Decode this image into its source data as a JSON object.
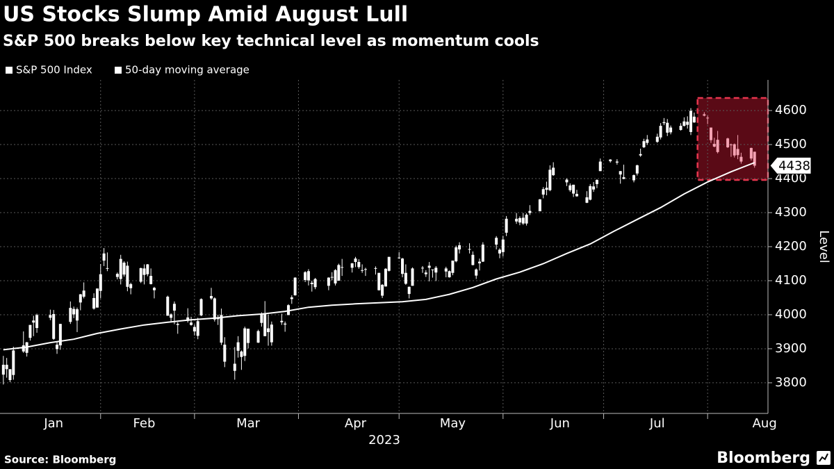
{
  "chart_data": {
    "type": "candlestick",
    "title": "US Stocks Slump Amid August Lull",
    "subtitle": "S&P 500 breaks below key technical level as momentum cools",
    "ylabel": "Level",
    "xlabel": "2023",
    "source": "Source: Bloomberg",
    "brand": "Bloomberg",
    "xlim": [
      2,
      231
    ],
    "ylim": [
      3710,
      4690
    ],
    "yticks": [
      3800,
      3900,
      4000,
      4100,
      4200,
      4300,
      4400,
      4500,
      4600
    ],
    "grid": true,
    "month_boundaries": [
      32,
      60,
      91,
      121,
      152,
      182,
      213
    ],
    "month_labels": [
      {
        "value": 18,
        "label": "Jan"
      },
      {
        "value": 45,
        "label": "Feb"
      },
      {
        "value": 76,
        "label": "Mar"
      },
      {
        "value": 108,
        "label": "Apr"
      },
      {
        "value": 137,
        "label": "May"
      },
      {
        "value": 169,
        "label": "Jun"
      },
      {
        "value": 198,
        "label": "Jul"
      },
      {
        "value": 230,
        "label": "Aug"
      }
    ],
    "highlight": {
      "xlim": [
        210,
        231
      ],
      "ylim": [
        4396,
        4637
      ],
      "fill": "#5a0a16",
      "stroke": "#e8364f"
    },
    "last_value_label": "4438",
    "series": [
      {
        "name": "S&P 500 Index",
        "type": "candlestick",
        "color": "#ffffff",
        "highlight_color": "#f5a3b3",
        "x": [
          3,
          4,
          5,
          6,
          9,
          10,
          11,
          12,
          13,
          17,
          18,
          19,
          20,
          23,
          24,
          25,
          26,
          27,
          30,
          31,
          32,
          33,
          34,
          37,
          38,
          39,
          40,
          41,
          44,
          45,
          46,
          47,
          48,
          52,
          53,
          54,
          55,
          58,
          59,
          60,
          61,
          62,
          65,
          66,
          67,
          68,
          69,
          72,
          73,
          74,
          75,
          76,
          79,
          80,
          81,
          82,
          83,
          86,
          87,
          88,
          89,
          90,
          93,
          94,
          95,
          96,
          100,
          101,
          102,
          103,
          104,
          107,
          108,
          109,
          110,
          111,
          114,
          115,
          116,
          117,
          118,
          121,
          122,
          123,
          124,
          125,
          128,
          129,
          130,
          131,
          132,
          135,
          136,
          137,
          138,
          139,
          142,
          143,
          144,
          145,
          146,
          150,
          151,
          152,
          153,
          156,
          157,
          158,
          159,
          160,
          163,
          164,
          165,
          166,
          167,
          171,
          172,
          173,
          174,
          177,
          178,
          179,
          180,
          181,
          184,
          186,
          187,
          188,
          191,
          192,
          193,
          194,
          195,
          198,
          199,
          200,
          201,
          202,
          205,
          206,
          207,
          208,
          209,
          212,
          213,
          214,
          215,
          216,
          219,
          220,
          221,
          222,
          223,
          226,
          227
        ],
        "open": [
          3853,
          3840,
          3840,
          3823,
          3910,
          3888,
          3932,
          3977,
          3961,
          3999,
          4002,
          3912,
          3910,
          3979,
          4001,
          3983,
          4036,
          4053,
          4049,
          4021,
          4070,
          4159,
          4137,
          4120,
          4105,
          4153,
          4144,
          4078,
          4097,
          4117,
          4119,
          4114,
          4072,
          4053,
          4001,
          4032,
          3973,
          3992,
          3977,
          3964,
          3938,
          3998,
          4055,
          4048,
          3987,
          3999,
          3912,
          3835,
          3894,
          3876,
          3879,
          3959,
          3918,
          3976,
          4002,
          3960,
          3919,
          3982,
          3974,
          3999,
          4046,
          4057,
          4102,
          4128,
          4094,
          4081,
          4085,
          4111,
          4131,
          4100,
          4140,
          4138,
          4165,
          4140,
          4131,
          4132,
          4135,
          4123,
          4088,
          4083,
          4129,
          4167,
          4165,
          4123,
          4082,
          4085,
          4136,
          4124,
          4144,
          4133,
          4138,
          4127,
          4128,
          4123,
          4157,
          4204,
          4191,
          4176,
          4133,
          4156,
          4156,
          4226,
          4191,
          4184,
          4241,
          4282,
          4271,
          4285,
          4268,
          4305,
          4304,
          4353,
          4367,
          4366,
          4432,
          4397,
          4380,
          4356,
          4355,
          4345,
          4338,
          4368,
          4384,
          4422,
          4451,
          4450,
          4422,
          4404,
          4395,
          4415,
          4468,
          4492,
          4515,
          4508,
          4521,
          4563,
          4564,
          4550,
          4543,
          4555,
          4558,
          4599,
          4565,
          4585,
          4579,
          4550,
          4494,
          4514,
          4492,
          4500,
          4501,
          4487,
          4450,
          4459,
          4479
        ],
        "high": [
          3879,
          3873,
          3840,
          3906,
          3951,
          3920,
          3970,
          3997,
          4003,
          4015,
          4014,
          3922,
          3973,
          4039,
          4024,
          4021,
          4061,
          4095,
          4063,
          4077,
          4149,
          4196,
          4183,
          4124,
          4176,
          4157,
          4156,
          4094,
          4138,
          4148,
          4149,
          4136,
          4082,
          4056,
          4004,
          4039,
          3978,
          4019,
          3994,
          3971,
          3991,
          4048,
          4079,
          4051,
          4000,
          4018,
          3934,
          3905,
          3937,
          3895,
          3965,
          3959,
          3956,
          4007,
          4040,
          4000,
          3980,
          4003,
          3980,
          4031,
          4057,
          4110,
          4128,
          4134,
          4100,
          4108,
          4110,
          4125,
          4134,
          4150,
          4164,
          4152,
          4170,
          4163,
          4148,
          4138,
          4142,
          4123,
          4090,
          4137,
          4170,
          4184,
          4167,
          4148,
          4083,
          4139,
          4143,
          4131,
          4155,
          4133,
          4143,
          4141,
          4130,
          4159,
          4203,
          4213,
          4210,
          4186,
          4136,
          4165,
          4213,
          4231,
          4195,
          4232,
          4290,
          4299,
          4289,
          4299,
          4298,
          4322,
          4340,
          4375,
          4391,
          4439,
          4448,
          4401,
          4386,
          4382,
          4367,
          4363,
          4384,
          4390,
          4398,
          4459,
          4457,
          4457,
          4422,
          4441,
          4412,
          4441,
          4488,
          4517,
          4528,
          4532,
          4563,
          4578,
          4575,
          4556,
          4563,
          4580,
          4583,
          4607,
          4594,
          4595,
          4585,
          4550,
          4520,
          4540,
          4520,
          4503,
          4503,
          4528,
          4476,
          4491,
          4479
        ],
        "low": [
          3795,
          3815,
          3802,
          3809,
          3888,
          3877,
          3924,
          3937,
          3947,
          3984,
          3926,
          3885,
          3897,
          3973,
          3990,
          3949,
          4013,
          4048,
          4015,
          4021,
          4048,
          4143,
          4128,
          4104,
          4089,
          4112,
          4069,
          4060,
          4093,
          4089,
          4113,
          4089,
          4048,
          3997,
          3981,
          3972,
          3944,
          3977,
          3968,
          3939,
          3928,
          3996,
          4044,
          3980,
          3970,
          3911,
          3846,
          3809,
          3874,
          3838,
          3864,
          3901,
          3917,
          3965,
          3937,
          3909,
          3909,
          3970,
          3950,
          3999,
          4032,
          4056,
          4096,
          4086,
          4068,
          4075,
          4072,
          4101,
          4086,
          4100,
          4114,
          4124,
          4140,
          4135,
          4123,
          4114,
          4118,
          4071,
          4049,
          4083,
          4127,
          4164,
          4110,
          4088,
          4048,
          4085,
          4123,
          4111,
          4098,
          4109,
          4099,
          4110,
          4109,
          4116,
          4154,
          4180,
          4180,
          4145,
          4105,
          4130,
          4155,
          4192,
          4166,
          4171,
          4231,
          4267,
          4263,
          4264,
          4262,
          4293,
          4304,
          4342,
          4351,
          4363,
          4408,
          4378,
          4361,
          4346,
          4347,
          4328,
          4336,
          4361,
          4372,
          4422,
          4447,
          4441,
          4385,
          4398,
          4389,
          4409,
          4464,
          4490,
          4499,
          4505,
          4515,
          4557,
          4525,
          4530,
          4541,
          4553,
          4547,
          4528,
          4564,
          4583,
          4560,
          4505,
          4492,
          4474,
          4490,
          4464,
          4462,
          4457,
          4444,
          4453,
          4432
        ],
        "close": [
          3824,
          3853,
          3808,
          3895,
          3892,
          3919,
          3970,
          3983,
          3999,
          3991,
          3929,
          3899,
          3973,
          4020,
          4017,
          4016,
          4060,
          4071,
          4018,
          4077,
          4119,
          4180,
          4137,
          4111,
          4164,
          4118,
          4082,
          4090,
          4137,
          4136,
          4148,
          4090,
          4079,
          3997,
          3991,
          4012,
          3970,
          3982,
          3970,
          3951,
          3981,
          4046,
          4048,
          3986,
          3992,
          3918,
          3862,
          3856,
          3919,
          3892,
          3960,
          3917,
          3952,
          4003,
          3937,
          3949,
          3971,
          3978,
          3971,
          4028,
          4051,
          4109,
          4125,
          4101,
          4090,
          4105,
          4109,
          4109,
          4092,
          4146,
          4138,
          4151,
          4155,
          4155,
          4130,
          4134,
          4137,
          4072,
          4056,
          4135,
          4170,
          4168,
          4120,
          4091,
          4061,
          4136,
          4138,
          4119,
          4138,
          4131,
          4124,
          4136,
          4110,
          4159,
          4198,
          4192,
          4193,
          4146,
          4115,
          4151,
          4206,
          4206,
          4180,
          4221,
          4282,
          4274,
          4284,
          4268,
          4294,
          4299,
          4339,
          4369,
          4373,
          4426,
          4410,
          4389,
          4366,
          4382,
          4348,
          4329,
          4378,
          4377,
          4396,
          4450,
          4456,
          4447,
          4412,
          4399,
          4410,
          4439,
          4472,
          4510,
          4505,
          4523,
          4555,
          4566,
          4535,
          4536,
          4555,
          4568,
          4567,
          4537,
          4582,
          4589,
          4577,
          4513,
          4502,
          4478,
          4518,
          4499,
          4468,
          4469,
          4464,
          4490,
          4438
        ]
      },
      {
        "name": "50-day moving average",
        "type": "line",
        "color": "#ffffff",
        "x": [
          3,
          10,
          17,
          24,
          31,
          38,
          45,
          52,
          59,
          66,
          73,
          80,
          87,
          94,
          101,
          108,
          115,
          122,
          129,
          136,
          143,
          150,
          157,
          164,
          171,
          178,
          185,
          192,
          199,
          206,
          213,
          220,
          227
        ],
        "values": [
          3897,
          3905,
          3918,
          3928,
          3945,
          3958,
          3970,
          3978,
          3985,
          3990,
          3997,
          4002,
          4010,
          4022,
          4028,
          4032,
          4035,
          4038,
          4045,
          4060,
          4080,
          4105,
          4125,
          4150,
          4180,
          4208,
          4245,
          4280,
          4315,
          4355,
          4390,
          4420,
          4447
        ]
      }
    ]
  }
}
